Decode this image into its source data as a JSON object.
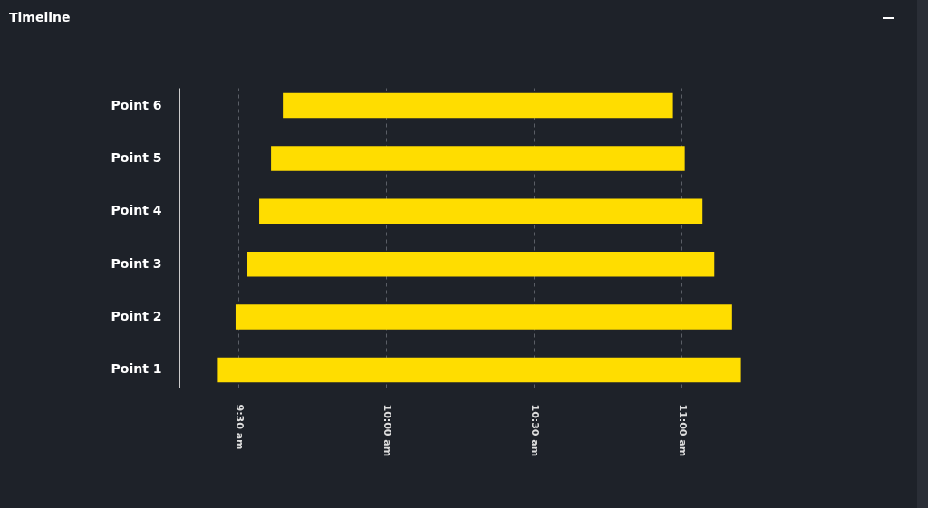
{
  "chart_data": {
    "type": "bar",
    "title": "Timeline",
    "orientation": "horizontal",
    "categories": [
      "Point 6",
      "Point 5",
      "Point 4",
      "Point 3",
      "Point 2",
      "Point 1"
    ],
    "base": [
      9.65,
      9.61,
      9.57,
      9.53,
      9.49,
      9.43
    ],
    "values": [
      1.32,
      1.4,
      1.5,
      1.58,
      1.68,
      1.77
    ],
    "color": "#ffdd00",
    "xlim": [
      9.3,
      11.33
    ],
    "xticks": [
      {
        "value": 9.5,
        "label": "9:30 am"
      },
      {
        "value": 10,
        "label": "10:00 am"
      },
      {
        "value": 10.5,
        "label": "10:30 am"
      },
      {
        "value": 11,
        "label": "11:00 am"
      }
    ],
    "grid": "x"
  }
}
